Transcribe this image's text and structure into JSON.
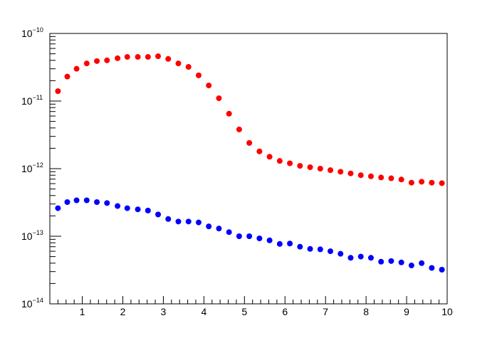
{
  "chart_data": {
    "type": "scatter",
    "title": "",
    "xlabel": "",
    "ylabel": "",
    "xlim": [
      0.2,
      10
    ],
    "ylim": [
      1e-14,
      1e-10
    ],
    "yscale": "log",
    "grid": false,
    "legend": "none",
    "x_ticks": [
      1,
      2,
      3,
      4,
      5,
      6,
      7,
      8,
      9,
      10
    ],
    "x_tick_labels": [
      "1",
      "2",
      "3",
      "4",
      "5",
      "6",
      "7",
      "8",
      "9",
      "10"
    ],
    "y_tick_labels": [
      {
        "value": 1e-14,
        "base": "10",
        "exp": "−14"
      },
      {
        "value": 1e-13,
        "base": "10",
        "exp": "−13"
      },
      {
        "value": 1e-12,
        "base": "10",
        "exp": "−12"
      },
      {
        "value": 1e-11,
        "base": "10",
        "exp": "−11"
      },
      {
        "value": 1e-10,
        "base": "10",
        "exp": "−10"
      }
    ],
    "series": [
      {
        "color": "#ff0000",
        "x": [
          0.4,
          0.63,
          0.86,
          1.11,
          1.36,
          1.61,
          1.87,
          2.11,
          2.37,
          2.62,
          2.87,
          3.12,
          3.37,
          3.62,
          3.87,
          4.12,
          4.37,
          4.62,
          4.87,
          5.12,
          5.37,
          5.62,
          5.87,
          6.12,
          6.37,
          6.62,
          6.87,
          7.12,
          7.37,
          7.62,
          7.87,
          8.12,
          8.37,
          8.62,
          8.87,
          9.12,
          9.37,
          9.62,
          9.87
        ],
        "y": [
          1.4e-11,
          2.3e-11,
          3e-11,
          3.6e-11,
          3.9e-11,
          4e-11,
          4.3e-11,
          4.5e-11,
          4.5e-11,
          4.5e-11,
          4.6e-11,
          4.2e-11,
          3.6e-11,
          3.2e-11,
          2.4e-11,
          1.7e-11,
          1.1e-11,
          6.5e-12,
          3.8e-12,
          2.4e-12,
          1.8e-12,
          1.5e-12,
          1.3e-12,
          1.2e-12,
          1.1e-12,
          1.05e-12,
          1e-12,
          9.5e-13,
          9e-13,
          8.5e-13,
          8e-13,
          7.7e-13,
          7.4e-13,
          7.2e-13,
          6.9e-13,
          6.2e-13,
          6.4e-13,
          6.2e-13,
          6.1e-13
        ]
      },
      {
        "color": "#0000ff",
        "x": [
          0.4,
          0.63,
          0.86,
          1.11,
          1.36,
          1.61,
          1.87,
          2.11,
          2.37,
          2.62,
          2.87,
          3.12,
          3.37,
          3.62,
          3.87,
          4.12,
          4.37,
          4.62,
          4.87,
          5.12,
          5.37,
          5.62,
          5.87,
          6.12,
          6.37,
          6.62,
          6.87,
          7.12,
          7.37,
          7.62,
          7.87,
          8.12,
          8.37,
          8.62,
          8.87,
          9.12,
          9.37,
          9.62,
          9.87
        ],
        "y": [
          2.6e-13,
          3.2e-13,
          3.4e-13,
          3.4e-13,
          3.2e-13,
          3.1e-13,
          2.8e-13,
          2.6e-13,
          2.5e-13,
          2.4e-13,
          2.1e-13,
          1.8e-13,
          1.65e-13,
          1.65e-13,
          1.6e-13,
          1.4e-13,
          1.3e-13,
          1.15e-13,
          1e-13,
          1e-13,
          9.3e-14,
          8.7e-14,
          7.7e-14,
          7.8e-14,
          7e-14,
          6.5e-14,
          6.4e-14,
          6e-14,
          5.5e-14,
          4.8e-14,
          5e-14,
          4.8e-14,
          4.2e-14,
          4.3e-14,
          4.1e-14,
          3.7e-14,
          4e-14,
          3.4e-14,
          3.2e-14
        ]
      }
    ]
  }
}
